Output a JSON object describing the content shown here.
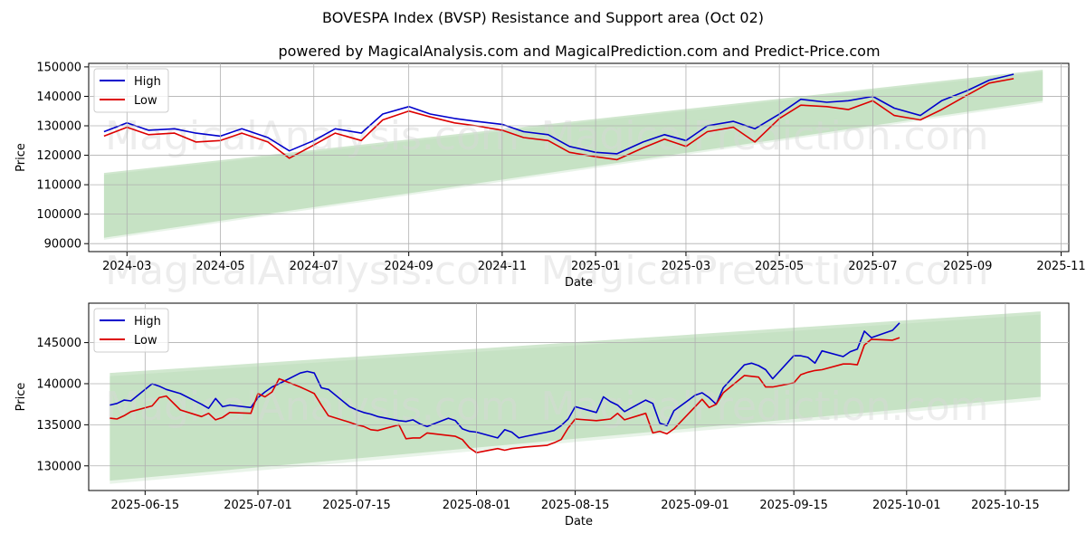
{
  "titles": {
    "main": "BOVESPA Index (BVSP) Resistance and Support area (Oct 02)",
    "sub": "powered by MagicalAnalysis.com and MagicalPrediction.com and Predict-Price.com"
  },
  "watermarks": [
    "MagicalAnalysis.com",
    "MagicalPrediction.com"
  ],
  "colors": {
    "high": "#0000cc",
    "low": "#dd0000",
    "band": "#a9d3a6"
  },
  "chart_data": [
    {
      "type": "line",
      "xlabel": "Date",
      "ylabel": "Price",
      "xlim": [
        "2024-02-05",
        "2025-11-06"
      ],
      "ylim": [
        87300,
        151200
      ],
      "xticks": [
        "2024-03",
        "2024-05",
        "2024-07",
        "2024-09",
        "2024-11",
        "2025-01",
        "2025-03",
        "2025-05",
        "2025-07",
        "2025-09",
        "2025-11"
      ],
      "xtick_dates": [
        "2024-03-01",
        "2024-05-01",
        "2024-07-01",
        "2024-09-01",
        "2024-11-01",
        "2025-01-01",
        "2025-03-01",
        "2025-05-01",
        "2025-07-01",
        "2025-09-01",
        "2025-11-01"
      ],
      "yticks": [
        90000,
        100000,
        110000,
        120000,
        130000,
        140000,
        150000
      ],
      "legend": {
        "placement": "top-left",
        "entries": [
          "High",
          "Low"
        ]
      },
      "band": {
        "x": [
          "2024-02-15",
          "2025-10-20"
        ],
        "upper": [
          114000,
          149000
        ],
        "lower": [
          92000,
          138500
        ]
      },
      "series": [
        {
          "name": "High",
          "x": [
            "2024-02-15",
            "2024-03-01",
            "2024-03-15",
            "2024-04-01",
            "2024-04-15",
            "2024-05-01",
            "2024-05-15",
            "2024-06-01",
            "2024-06-15",
            "2024-07-01",
            "2024-07-15",
            "2024-08-01",
            "2024-08-15",
            "2024-09-01",
            "2024-09-15",
            "2024-10-01",
            "2024-10-15",
            "2024-11-01",
            "2024-11-15",
            "2024-12-01",
            "2024-12-15",
            "2025-01-01",
            "2025-01-15",
            "2025-02-01",
            "2025-02-15",
            "2025-03-01",
            "2025-03-15",
            "2025-04-01",
            "2025-04-15",
            "2025-05-01",
            "2025-05-15",
            "2025-06-01",
            "2025-06-15",
            "2025-07-01",
            "2025-07-15",
            "2025-08-01",
            "2025-08-15",
            "2025-09-01",
            "2025-09-15",
            "2025-10-01"
          ],
          "values": [
            128000,
            131000,
            128500,
            129000,
            127500,
            126500,
            129000,
            126000,
            121500,
            125000,
            129000,
            127500,
            134000,
            136500,
            134000,
            132500,
            131500,
            130500,
            128000,
            127000,
            123000,
            121000,
            120500,
            124500,
            127000,
            125000,
            130000,
            131500,
            129000,
            134000,
            139000,
            138000,
            138500,
            140000,
            136000,
            133500,
            138500,
            142000,
            145500,
            147500
          ]
        },
        {
          "name": "Low",
          "x": [
            "2024-02-15",
            "2024-03-01",
            "2024-03-15",
            "2024-04-01",
            "2024-04-15",
            "2024-05-01",
            "2024-05-15",
            "2024-06-01",
            "2024-06-15",
            "2024-07-01",
            "2024-07-15",
            "2024-08-01",
            "2024-08-15",
            "2024-09-01",
            "2024-09-15",
            "2024-10-01",
            "2024-10-15",
            "2024-11-01",
            "2024-11-15",
            "2024-12-01",
            "2024-12-15",
            "2025-01-01",
            "2025-01-15",
            "2025-02-01",
            "2025-02-15",
            "2025-03-01",
            "2025-03-15",
            "2025-04-01",
            "2025-04-15",
            "2025-05-01",
            "2025-05-15",
            "2025-06-01",
            "2025-06-15",
            "2025-07-01",
            "2025-07-15",
            "2025-08-01",
            "2025-08-15",
            "2025-09-01",
            "2025-09-15",
            "2025-10-01"
          ],
          "values": [
            126500,
            129500,
            127000,
            127500,
            124500,
            125000,
            127500,
            124500,
            119000,
            123500,
            127500,
            125000,
            132000,
            135000,
            133000,
            131000,
            130000,
            128500,
            126000,
            125000,
            121000,
            119500,
            118500,
            122500,
            125500,
            123000,
            128000,
            129500,
            124500,
            132500,
            137000,
            136500,
            135500,
            138500,
            133500,
            132000,
            135500,
            140500,
            144500,
            146000
          ]
        }
      ]
    },
    {
      "type": "line",
      "xlabel": "Date",
      "ylabel": "Price",
      "xlim": [
        "2025-06-07",
        "2025-10-24"
      ],
      "ylim": [
        127000,
        149800
      ],
      "xticks": [
        "2025-06-15",
        "2025-07-01",
        "2025-07-15",
        "2025-08-01",
        "2025-08-15",
        "2025-09-01",
        "2025-09-15",
        "2025-10-01",
        "2025-10-15"
      ],
      "xtick_dates": [
        "2025-06-15",
        "2025-07-01",
        "2025-07-15",
        "2025-08-01",
        "2025-08-15",
        "2025-09-01",
        "2025-09-15",
        "2025-10-01",
        "2025-10-15"
      ],
      "yticks": [
        130000,
        135000,
        140000,
        145000
      ],
      "legend": {
        "placement": "top-left",
        "entries": [
          "High",
          "Low"
        ]
      },
      "band": {
        "x": [
          "2025-06-10",
          "2025-10-20"
        ],
        "upper": [
          141300,
          148800
        ],
        "lower": [
          128200,
          138400
        ]
      },
      "series": [
        {
          "name": "High",
          "x": [
            "2025-06-10",
            "2025-06-11",
            "2025-06-12",
            "2025-06-13",
            "2025-06-16",
            "2025-06-17",
            "2025-06-18",
            "2025-06-20",
            "2025-06-23",
            "2025-06-24",
            "2025-06-25",
            "2025-06-26",
            "2025-06-27",
            "2025-06-30",
            "2025-07-01",
            "2025-07-02",
            "2025-07-03",
            "2025-07-04",
            "2025-07-07",
            "2025-07-08",
            "2025-07-09",
            "2025-07-10",
            "2025-07-11",
            "2025-07-14",
            "2025-07-15",
            "2025-07-16",
            "2025-07-17",
            "2025-07-18",
            "2025-07-21",
            "2025-07-22",
            "2025-07-23",
            "2025-07-24",
            "2025-07-25",
            "2025-07-28",
            "2025-07-29",
            "2025-07-30",
            "2025-07-31",
            "2025-08-01",
            "2025-08-04",
            "2025-08-05",
            "2025-08-06",
            "2025-08-07",
            "2025-08-08",
            "2025-08-11",
            "2025-08-12",
            "2025-08-13",
            "2025-08-14",
            "2025-08-15",
            "2025-08-18",
            "2025-08-19",
            "2025-08-20",
            "2025-08-21",
            "2025-08-22",
            "2025-08-25",
            "2025-08-26",
            "2025-08-27",
            "2025-08-28",
            "2025-08-29",
            "2025-09-01",
            "2025-09-02",
            "2025-09-03",
            "2025-09-04",
            "2025-09-05",
            "2025-09-08",
            "2025-09-09",
            "2025-09-10",
            "2025-09-11",
            "2025-09-12",
            "2025-09-15",
            "2025-09-16",
            "2025-09-17",
            "2025-09-18",
            "2025-09-19",
            "2025-09-22",
            "2025-09-23",
            "2025-09-24",
            "2025-09-25",
            "2025-09-26",
            "2025-09-29",
            "2025-09-30"
          ],
          "values": [
            137400,
            137600,
            138000,
            137900,
            140000,
            139700,
            139300,
            138800,
            137500,
            137000,
            138200,
            137200,
            137400,
            137100,
            138300,
            139000,
            139600,
            140000,
            141300,
            141500,
            141300,
            139500,
            139300,
            137200,
            136800,
            136500,
            136300,
            136000,
            135500,
            135400,
            135600,
            135100,
            134800,
            135800,
            135500,
            134500,
            134200,
            134100,
            133400,
            134400,
            134100,
            133400,
            133600,
            134100,
            134300,
            134900,
            135700,
            137200,
            136500,
            138400,
            137800,
            137400,
            136600,
            138000,
            137600,
            135200,
            134900,
            136700,
            138600,
            138900,
            138300,
            137500,
            139500,
            142300,
            142500,
            142200,
            141700,
            140600,
            143400,
            143400,
            143200,
            142500,
            144000,
            143300,
            143900,
            144200,
            146400,
            145600,
            146500,
            147400
          ]
        },
        {
          "name": "Low",
          "x": [
            "2025-06-10",
            "2025-06-11",
            "2025-06-12",
            "2025-06-13",
            "2025-06-16",
            "2025-06-17",
            "2025-06-18",
            "2025-06-20",
            "2025-06-23",
            "2025-06-24",
            "2025-06-25",
            "2025-06-26",
            "2025-06-27",
            "2025-06-30",
            "2025-07-01",
            "2025-07-02",
            "2025-07-03",
            "2025-07-04",
            "2025-07-07",
            "2025-07-08",
            "2025-07-09",
            "2025-07-10",
            "2025-07-11",
            "2025-07-14",
            "2025-07-15",
            "2025-07-16",
            "2025-07-17",
            "2025-07-18",
            "2025-07-21",
            "2025-07-22",
            "2025-07-23",
            "2025-07-24",
            "2025-07-25",
            "2025-07-28",
            "2025-07-29",
            "2025-07-30",
            "2025-07-31",
            "2025-08-01",
            "2025-08-04",
            "2025-08-05",
            "2025-08-06",
            "2025-08-07",
            "2025-08-08",
            "2025-08-11",
            "2025-08-12",
            "2025-08-13",
            "2025-08-14",
            "2025-08-15",
            "2025-08-18",
            "2025-08-19",
            "2025-08-20",
            "2025-08-21",
            "2025-08-22",
            "2025-08-25",
            "2025-08-26",
            "2025-08-27",
            "2025-08-28",
            "2025-08-29",
            "2025-09-01",
            "2025-09-02",
            "2025-09-03",
            "2025-09-04",
            "2025-09-05",
            "2025-09-08",
            "2025-09-09",
            "2025-09-10",
            "2025-09-11",
            "2025-09-12",
            "2025-09-15",
            "2025-09-16",
            "2025-09-17",
            "2025-09-18",
            "2025-09-19",
            "2025-09-22",
            "2025-09-23",
            "2025-09-24",
            "2025-09-25",
            "2025-09-26",
            "2025-09-29",
            "2025-09-30"
          ],
          "values": [
            135800,
            135700,
            136100,
            136600,
            137300,
            138300,
            138500,
            136800,
            136000,
            136400,
            135600,
            135900,
            136500,
            136400,
            138800,
            138400,
            139000,
            140600,
            139600,
            139200,
            138800,
            137400,
            136100,
            135300,
            135000,
            134800,
            134400,
            134300,
            135000,
            133300,
            133400,
            133400,
            134000,
            133700,
            133600,
            133200,
            132200,
            131600,
            132100,
            131900,
            132100,
            132200,
            132300,
            132500,
            132800,
            133200,
            134600,
            135700,
            135500,
            135600,
            135700,
            136400,
            135600,
            136400,
            134000,
            134200,
            133900,
            134500,
            137200,
            138100,
            137100,
            137500,
            138900,
            141000,
            140900,
            140800,
            139600,
            139600,
            140100,
            141100,
            141400,
            141600,
            141700,
            142400,
            142400,
            142300,
            144700,
            145400,
            145300,
            145600
          ]
        }
      ]
    }
  ]
}
